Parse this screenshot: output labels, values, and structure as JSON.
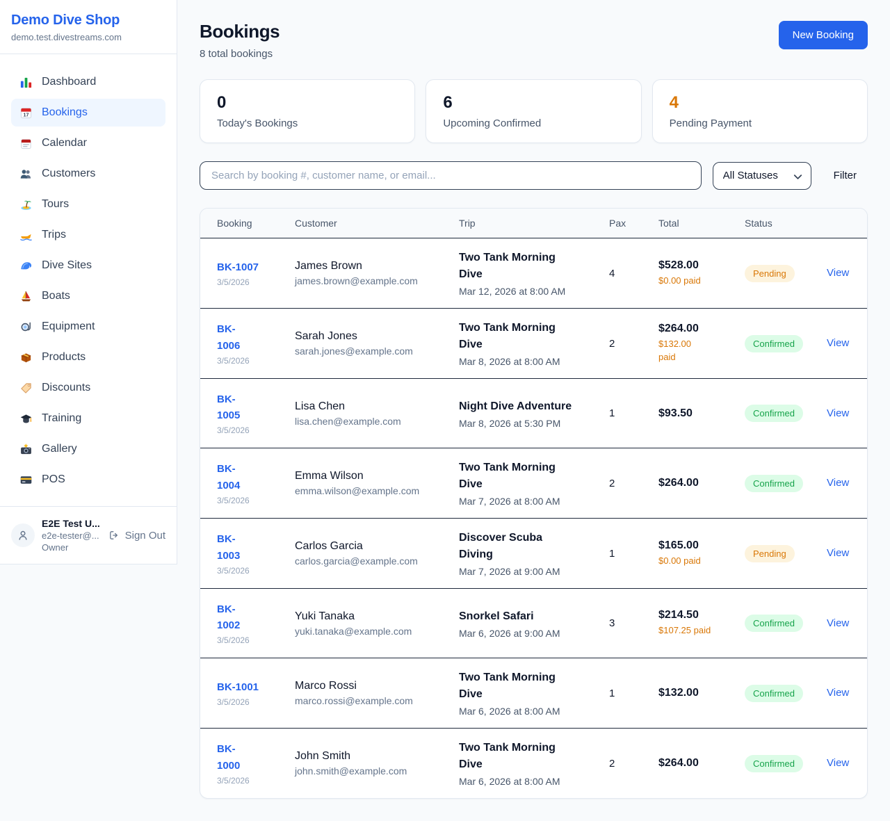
{
  "brand": {
    "name": "Demo Dive Shop",
    "domain": "demo.test.divestreams.com"
  },
  "sidebar": {
    "items": [
      {
        "icon": "bar-chart",
        "label": "Dashboard",
        "active": false
      },
      {
        "icon": "tearoff-calendar",
        "label": "Bookings",
        "active": true
      },
      {
        "icon": "spiral-calendar",
        "label": "Calendar",
        "active": false
      },
      {
        "icon": "users",
        "label": "Customers",
        "active": false
      },
      {
        "icon": "island",
        "label": "Tours",
        "active": false
      },
      {
        "icon": "speedboat",
        "label": "Trips",
        "active": false
      },
      {
        "icon": "wave",
        "label": "Dive Sites",
        "active": false
      },
      {
        "icon": "sailboat",
        "label": "Boats",
        "active": false
      },
      {
        "icon": "diving-mask",
        "label": "Equipment",
        "active": false
      },
      {
        "icon": "package",
        "label": "Products",
        "active": false
      },
      {
        "icon": "tag",
        "label": "Discounts",
        "active": false
      },
      {
        "icon": "graduation-cap",
        "label": "Training",
        "active": false
      },
      {
        "icon": "camera-flash",
        "label": "Gallery",
        "active": false
      },
      {
        "icon": "credit-card",
        "label": "POS",
        "active": false
      }
    ],
    "user": {
      "name": "E2E Test U...",
      "email": "e2e-tester@...",
      "role": "Owner",
      "sign_out_label": "Sign Out"
    }
  },
  "header": {
    "title": "Bookings",
    "subtitle": "8 total bookings",
    "new_booking_label": "New Booking"
  },
  "stats": [
    {
      "value": "0",
      "label": "Today's Bookings",
      "color": "#0f172a"
    },
    {
      "value": "6",
      "label": "Upcoming Confirmed",
      "color": "#0f172a"
    },
    {
      "value": "4",
      "label": "Pending Payment",
      "color": "#d97706"
    }
  ],
  "filters": {
    "search_placeholder": "Search by booking #, customer name, or email...",
    "status_selected": "All Statuses",
    "filter_label": "Filter"
  },
  "table": {
    "columns": [
      "Booking",
      "Customer",
      "Trip",
      "Pax",
      "Total",
      "Status"
    ],
    "action_label": "View",
    "rows": [
      {
        "booking_id": "BK-1007",
        "booking_date": "3/5/2026",
        "customer_name": "James Brown",
        "customer_email": "james.brown@example.com",
        "trip_name": "Two Tank Morning Dive",
        "trip_datetime": "Mar 12, 2026 at 8:00 AM",
        "pax": "4",
        "total": "$528.00",
        "paid": "$0.00 paid",
        "status": "Pending"
      },
      {
        "booking_id": "BK-1006",
        "booking_date": "3/5/2026",
        "customer_name": "Sarah Jones",
        "customer_email": "sarah.jones@example.com",
        "trip_name": "Two Tank Morning Dive",
        "trip_datetime": "Mar 8, 2026 at 8:00 AM",
        "pax": "2",
        "total": "$264.00",
        "paid": "$132.00 paid",
        "status": "Confirmed"
      },
      {
        "booking_id": "BK-1005",
        "booking_date": "3/5/2026",
        "customer_name": "Lisa Chen",
        "customer_email": "lisa.chen@example.com",
        "trip_name": "Night Dive Adventure",
        "trip_datetime": "Mar 8, 2026 at 5:30 PM",
        "pax": "1",
        "total": "$93.50",
        "paid": null,
        "status": "Confirmed"
      },
      {
        "booking_id": "BK-1004",
        "booking_date": "3/5/2026",
        "customer_name": "Emma Wilson",
        "customer_email": "emma.wilson@example.com",
        "trip_name": "Two Tank Morning Dive",
        "trip_datetime": "Mar 7, 2026 at 8:00 AM",
        "pax": "2",
        "total": "$264.00",
        "paid": null,
        "status": "Confirmed"
      },
      {
        "booking_id": "BK-1003",
        "booking_date": "3/5/2026",
        "customer_name": "Carlos Garcia",
        "customer_email": "carlos.garcia@example.com",
        "trip_name": "Discover Scuba Diving",
        "trip_datetime": "Mar 7, 2026 at 9:00 AM",
        "pax": "1",
        "total": "$165.00",
        "paid": "$0.00 paid",
        "status": "Pending"
      },
      {
        "booking_id": "BK-1002",
        "booking_date": "3/5/2026",
        "customer_name": "Yuki Tanaka",
        "customer_email": "yuki.tanaka@example.com",
        "trip_name": "Snorkel Safari",
        "trip_datetime": "Mar 6, 2026 at 9:00 AM",
        "pax": "3",
        "total": "$214.50",
        "paid": "$107.25 paid",
        "status": "Confirmed"
      },
      {
        "booking_id": "BK-1001",
        "booking_date": "3/5/2026",
        "customer_name": "Marco Rossi",
        "customer_email": "marco.rossi@example.com",
        "trip_name": "Two Tank Morning Dive",
        "trip_datetime": "Mar 6, 2026 at 8:00 AM",
        "pax": "1",
        "total": "$132.00",
        "paid": null,
        "status": "Confirmed"
      },
      {
        "booking_id": "BK-1000",
        "booking_date": "3/5/2026",
        "customer_name": "John Smith",
        "customer_email": "john.smith@example.com",
        "trip_name": "Two Tank Morning Dive",
        "trip_datetime": "Mar 6, 2026 at 8:00 AM",
        "pax": "2",
        "total": "$264.00",
        "paid": null,
        "status": "Confirmed"
      }
    ]
  },
  "colors": {
    "accent": "#2563eb",
    "pending_text": "#d97706",
    "pending_bg": "#fdf3dd",
    "confirmed_text": "#16a34a",
    "confirmed_bg": "#dcfce7",
    "page_bg": "#f8fafc"
  }
}
